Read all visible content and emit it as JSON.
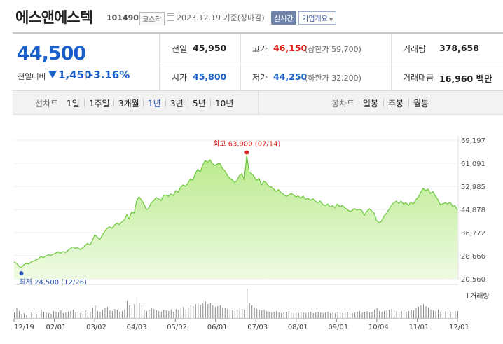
{
  "header": {
    "stock_name": "에스앤에스텍",
    "stock_code": "101490",
    "market": "코스닥",
    "date_text": "2023.12.19 기준(장마감)",
    "realtime_label": "실시간",
    "company_label": "기업개요"
  },
  "price": {
    "current": "44,500",
    "change_label": "전일대비",
    "change_amount": "1,450",
    "change_percent": "-3.16%"
  },
  "summary": {
    "prev_label": "전일",
    "prev_value": "45,950",
    "high_label": "고가",
    "high_value": "46,150",
    "upper_limit": "(상한가 59,700)",
    "volume_label": "거래량",
    "volume_value": "378,658",
    "open_label": "시가",
    "open_value": "45,800",
    "low_label": "저가",
    "low_value": "44,250",
    "lower_limit": "(하한가 32,200)",
    "amount_label": "거래대금",
    "amount_value": "16,960 백만"
  },
  "tabs": {
    "line_label": "선차트",
    "line_tabs": [
      "1일",
      "1주일",
      "3개월",
      "1년",
      "3년",
      "5년",
      "10년"
    ],
    "active_tab": "1년",
    "candle_label": "봉차트",
    "candle_tabs": [
      "일봉",
      "주봉",
      "월봉"
    ]
  },
  "colors": {
    "line": "#6bc83a",
    "fill_top": "#b9ea8c",
    "fill_bottom": "#eefae2",
    "high": "#d2231c",
    "low": "#2a54b8",
    "volume": "#888888"
  },
  "chart_data": {
    "type": "area",
    "y_ticks": [
      "69,197",
      "61,091",
      "52,985",
      "44,878",
      "36,772",
      "28,666",
      "20,560"
    ],
    "ylim": [
      20560,
      69197
    ],
    "x_ticks": [
      "12/19",
      "02/01",
      "03/02",
      "04/03",
      "05/02",
      "06/01",
      "07/03",
      "08/01",
      "09/01",
      "10/04",
      "11/01",
      "12/01"
    ],
    "high_annotation": "최고 63,900 (07/14)",
    "low_annotation": "최저 24,500 (12/26)",
    "volume_label": "거래량",
    "series": [
      {
        "values": [
          26500,
          26000,
          25000,
          24500,
          25500,
          26000,
          25800,
          26500,
          26800,
          27200,
          27600,
          28400,
          28000,
          28600,
          29000,
          28800,
          29200,
          29600,
          30000,
          29500,
          30200,
          29800,
          30500,
          31200,
          31800,
          31200,
          31600,
          30800,
          31400,
          32200,
          33000,
          32400,
          34000,
          36000,
          35200,
          34300,
          35800,
          37200,
          38300,
          38800,
          38300,
          39400,
          40100,
          39600,
          40500,
          41200,
          43000,
          41600,
          44100,
          43600,
          47800,
          49300,
          48200,
          46800,
          44800,
          45300,
          47200,
          48000,
          49000,
          48600,
          48000,
          49800,
          50000,
          49500,
          50300,
          49800,
          51500,
          51000,
          52700,
          53500,
          53000,
          54200,
          55600,
          55200,
          57500,
          59000,
          58000,
          60500,
          62000,
          61500,
          62300,
          61000,
          60300,
          60800,
          61200,
          59300,
          58500,
          57000,
          55800,
          55300,
          54300,
          55000,
          56800,
          57500,
          55200,
          63900,
          58000,
          57500,
          56500,
          55000,
          55800,
          53500,
          54800,
          54200,
          53000,
          52800,
          52000,
          51200,
          51800,
          50800,
          50200,
          49500,
          49800,
          50500,
          50100,
          49300,
          49600,
          48800,
          49600,
          48400,
          48800,
          48100,
          48600,
          47800,
          47200,
          47800,
          46600,
          46200,
          46800,
          45800,
          46200,
          45500,
          46800,
          45800,
          46300,
          45500,
          44800,
          44200,
          44500,
          45200,
          44600,
          45000,
          44500,
          42800,
          44200,
          45100,
          44400,
          43500,
          41000,
          40200,
          40800,
          42600,
          43500,
          44800,
          46300,
          47200,
          47800,
          47000,
          47800,
          46800,
          47200,
          46300,
          47500,
          46800,
          48300,
          49200,
          50800,
          52300,
          51500,
          52000,
          50500,
          51200,
          49600,
          48400,
          46500,
          46900,
          47200,
          46800,
          47500,
          46000,
          46200,
          44500
        ]
      }
    ],
    "volumes": [
      8,
      14,
      10,
      6,
      7,
      5,
      9,
      8,
      7,
      6,
      10,
      12,
      9,
      8,
      7,
      6,
      10,
      9,
      8,
      11,
      7,
      8,
      9,
      10,
      12,
      8,
      9,
      7,
      10,
      11,
      13,
      9,
      15,
      18,
      10,
      9,
      12,
      14,
      16,
      11,
      10,
      13,
      12,
      9,
      10,
      12,
      25,
      18,
      15,
      20,
      30,
      22,
      18,
      12,
      10,
      12,
      14,
      13,
      11,
      10,
      9,
      12,
      11,
      10,
      12,
      9,
      13,
      12,
      14,
      16,
      13,
      15,
      18,
      17,
      20,
      22,
      19,
      21,
      24,
      20,
      22,
      18,
      16,
      17,
      18,
      15,
      14,
      13,
      12,
      11,
      10,
      12,
      14,
      13,
      12,
      42,
      22,
      18,
      15,
      13,
      12,
      11,
      12,
      10,
      9,
      8,
      9,
      10,
      8,
      7,
      8,
      9,
      10,
      8,
      7,
      8,
      7,
      9,
      8,
      7,
      8,
      9,
      7,
      8,
      9,
      8,
      7,
      8,
      9,
      7,
      8,
      7,
      9,
      8,
      7,
      8,
      9,
      8,
      7,
      8,
      9,
      10,
      8,
      9,
      10,
      8,
      9,
      12,
      14,
      10,
      9,
      10,
      11,
      12,
      13,
      11,
      10,
      9,
      10,
      11,
      9,
      10,
      12,
      11,
      14,
      16,
      18,
      20,
      17,
      15,
      12,
      11,
      10,
      12,
      9,
      8,
      10,
      11,
      9,
      12,
      10,
      10
    ]
  }
}
